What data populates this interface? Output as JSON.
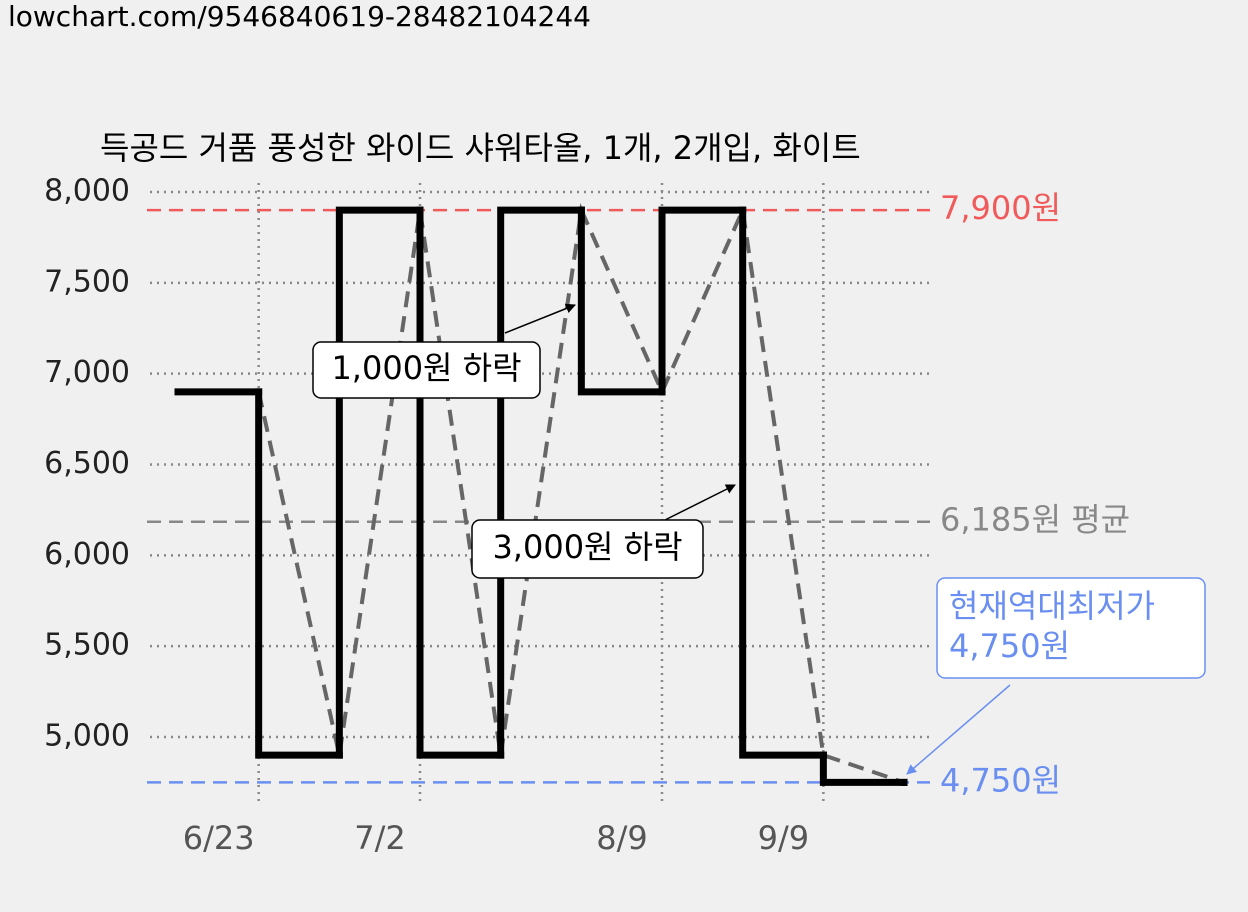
{
  "header": {
    "url": "lowchart.com/9546840619-28482104244"
  },
  "chart_data": {
    "type": "step",
    "title": "득공드 거품 풍성한 와이드 샤워타올, 1개, 2개입, 화이트",
    "categories": [
      null,
      "6/23",
      null,
      "7/2",
      null,
      null,
      "8/9",
      null,
      "9/9",
      null
    ],
    "values": [
      6900,
      4900,
      7900,
      4900,
      7900,
      6900,
      7900,
      4900,
      4750,
      4750
    ],
    "color": "#000000",
    "trend_color": "#666666",
    "ylim": [
      4650,
      8000
    ],
    "yticks": [
      {
        "value": 5000,
        "label": "5,000"
      },
      {
        "value": 5500,
        "label": "5,500"
      },
      {
        "value": 6000,
        "label": "6,000"
      },
      {
        "value": 6500,
        "label": "6,500"
      },
      {
        "value": 7000,
        "label": "7,000"
      },
      {
        "value": 7500,
        "label": "7,500"
      },
      {
        "value": 8000,
        "label": "8,000"
      }
    ],
    "grid": true,
    "reference_lines": [
      {
        "value": 7900,
        "label": "7,900원",
        "color": "#f05a5a"
      },
      {
        "value": 6185,
        "label": "6,185원 평균",
        "color": "#888888"
      },
      {
        "value": 4750,
        "label": "4,750원",
        "color": "#6a8ff0"
      }
    ],
    "annotations": [
      {
        "lines": [
          "1,000원 하락"
        ]
      },
      {
        "lines": [
          "3,000원 하락"
        ]
      },
      {
        "lines": [
          "현재역대최저가",
          "4,750원"
        ]
      }
    ]
  }
}
